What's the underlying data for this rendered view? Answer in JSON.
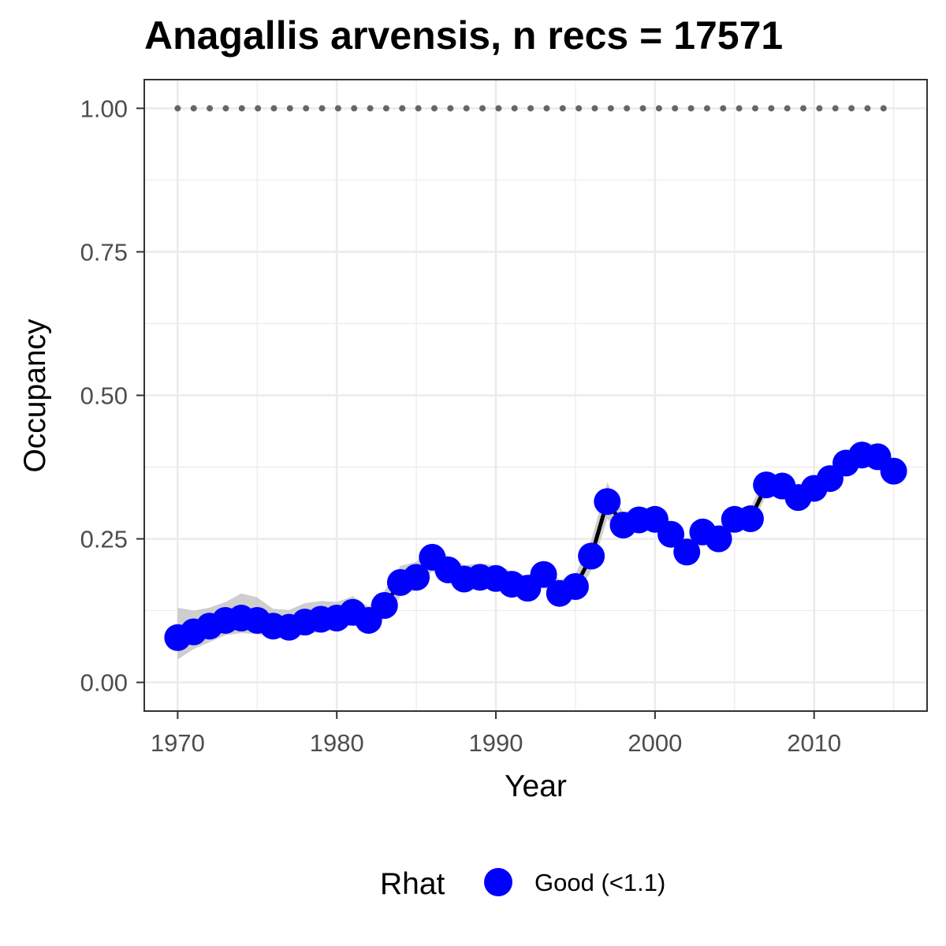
{
  "chart_data": {
    "type": "line",
    "title": "Anagallis arvensis, n recs = 17571",
    "xlabel": "Year",
    "ylabel": "Occupancy",
    "xlim": [
      1967.9,
      2017.1
    ],
    "ylim": [
      -0.05,
      1.05
    ],
    "x_ticks": [
      1970,
      1980,
      1990,
      2000,
      2010
    ],
    "x_tick_labels": [
      "1970",
      "1980",
      "1990",
      "2000",
      "2010"
    ],
    "y_ticks": [
      0,
      0.25,
      0.5,
      0.75,
      1
    ],
    "y_tick_labels": [
      "0.00",
      "0.25",
      "0.50",
      "0.75",
      "1.00"
    ],
    "grid": true,
    "reference_line": {
      "y": 1.0,
      "style": "dotted",
      "color": "#666666"
    },
    "series": [
      {
        "years": [
          1970,
          1971,
          1972,
          1973,
          1974,
          1975,
          1976,
          1977,
          1978,
          1979,
          1980,
          1981,
          1982,
          1983,
          1984,
          1985,
          1986,
          1987,
          1988,
          1989,
          1990,
          1991,
          1992,
          1993,
          1994,
          1995,
          1996,
          1997,
          1998,
          1999,
          2000,
          2001,
          2002,
          2003,
          2004,
          2005,
          2006,
          2007,
          2008,
          2009,
          2010,
          2011,
          2012,
          2013,
          2014,
          2015
        ],
        "values": [
          0.078,
          0.088,
          0.098,
          0.108,
          0.112,
          0.108,
          0.098,
          0.096,
          0.105,
          0.11,
          0.112,
          0.122,
          0.108,
          0.134,
          0.174,
          0.183,
          0.218,
          0.196,
          0.18,
          0.183,
          0.181,
          0.171,
          0.164,
          0.188,
          0.155,
          0.167,
          0.22,
          0.315,
          0.274,
          0.283,
          0.284,
          0.258,
          0.227,
          0.262,
          0.25,
          0.284,
          0.285,
          0.344,
          0.342,
          0.322,
          0.338,
          0.355,
          0.382,
          0.396,
          0.393,
          0.368
        ],
        "lower": [
          0.04,
          0.058,
          0.07,
          0.082,
          0.086,
          0.084,
          0.078,
          0.076,
          0.084,
          0.088,
          0.092,
          0.1,
          0.09,
          0.112,
          0.15,
          0.162,
          0.194,
          0.176,
          0.16,
          0.163,
          0.162,
          0.152,
          0.146,
          0.168,
          0.135,
          0.147,
          0.195,
          0.285,
          0.254,
          0.264,
          0.265,
          0.24,
          0.21,
          0.244,
          0.232,
          0.266,
          0.268,
          0.326,
          0.324,
          0.305,
          0.32,
          0.337,
          0.364,
          0.376,
          0.374,
          0.35
        ],
        "upper": [
          0.13,
          0.125,
          0.13,
          0.14,
          0.155,
          0.148,
          0.128,
          0.126,
          0.138,
          0.142,
          0.14,
          0.15,
          0.132,
          0.16,
          0.203,
          0.21,
          0.242,
          0.22,
          0.204,
          0.207,
          0.204,
          0.193,
          0.186,
          0.21,
          0.178,
          0.189,
          0.248,
          0.348,
          0.296,
          0.304,
          0.305,
          0.28,
          0.246,
          0.282,
          0.27,
          0.304,
          0.305,
          0.362,
          0.362,
          0.342,
          0.358,
          0.374,
          0.402,
          0.42,
          0.414,
          0.388
        ],
        "point_color": "#0000ff",
        "line_color": "#000000",
        "ribbon_color": "#bebebe"
      }
    ],
    "legend": {
      "title": "Rhat",
      "position": "bottom",
      "items": [
        {
          "label": "Good (<1.1)",
          "color": "#0000ff"
        }
      ]
    }
  }
}
